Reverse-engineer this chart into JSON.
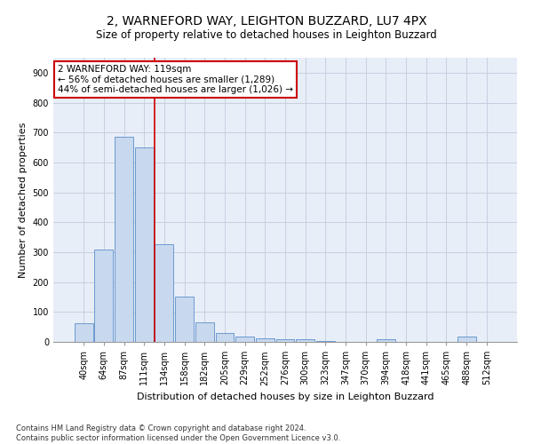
{
  "title_line1": "2, WARNEFORD WAY, LEIGHTON BUZZARD, LU7 4PX",
  "title_line2": "Size of property relative to detached houses in Leighton Buzzard",
  "xlabel": "Distribution of detached houses by size in Leighton Buzzard",
  "ylabel": "Number of detached properties",
  "footnote": "Contains HM Land Registry data © Crown copyright and database right 2024.\nContains public sector information licensed under the Open Government Licence v3.0.",
  "bar_color": "#c8d8ee",
  "bar_edge_color": "#5b8fc9",
  "categories": [
    "40sqm",
    "64sqm",
    "87sqm",
    "111sqm",
    "134sqm",
    "158sqm",
    "182sqm",
    "205sqm",
    "229sqm",
    "252sqm",
    "276sqm",
    "300sqm",
    "323sqm",
    "347sqm",
    "370sqm",
    "394sqm",
    "418sqm",
    "441sqm",
    "465sqm",
    "488sqm",
    "512sqm"
  ],
  "values": [
    62,
    310,
    685,
    650,
    328,
    150,
    65,
    30,
    18,
    11,
    10,
    8,
    4,
    0,
    0,
    8,
    0,
    0,
    0,
    18,
    0
  ],
  "ylim": [
    0,
    950
  ],
  "yticks": [
    0,
    100,
    200,
    300,
    400,
    500,
    600,
    700,
    800,
    900
  ],
  "vline_x": 3.5,
  "vline_color": "#cc0000",
  "annotation_text": "2 WARNEFORD WAY: 119sqm\n← 56% of detached houses are smaller (1,289)\n44% of semi-detached houses are larger (1,026) →",
  "grid_color": "#c8cfe0",
  "background_color": "#e8eef8",
  "title_fontsize": 10,
  "subtitle_fontsize": 8.5,
  "ylabel_fontsize": 8,
  "xlabel_fontsize": 8,
  "tick_fontsize": 7,
  "annot_fontsize": 7.5,
  "footnote_fontsize": 6
}
